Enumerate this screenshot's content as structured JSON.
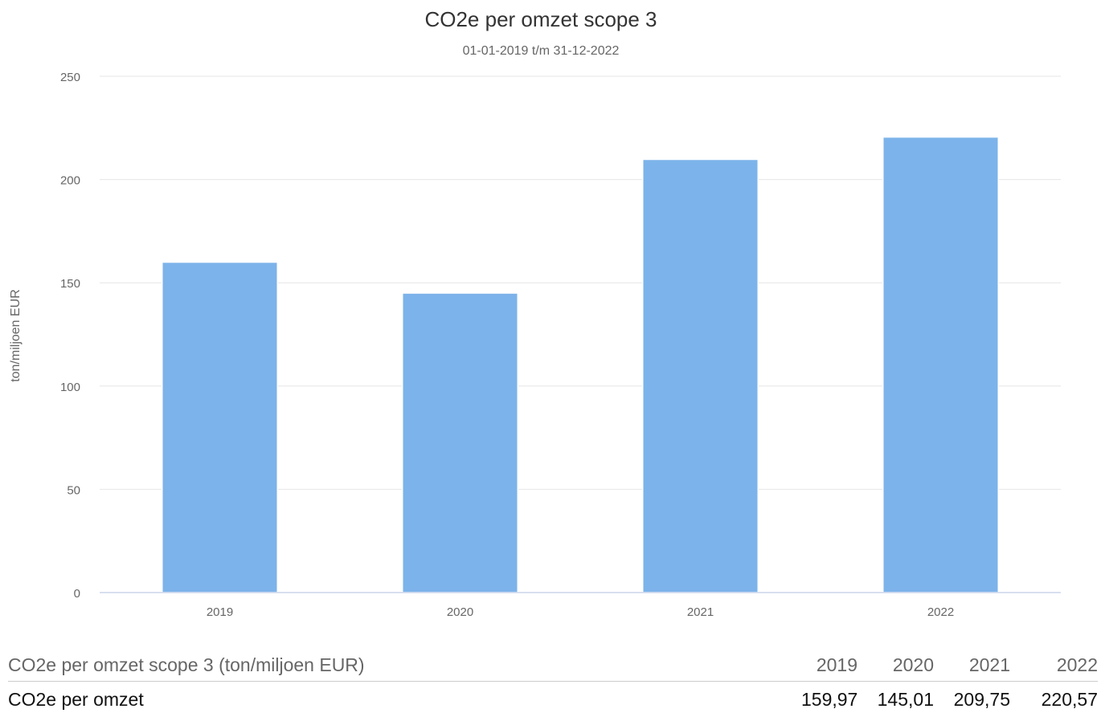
{
  "chart_data": {
    "type": "bar",
    "title": "CO2e per omzet scope 3",
    "subtitle": "01-01-2019 t/m 31-12-2022",
    "xlabel": "",
    "ylabel": "ton/miljoen EUR",
    "categories": [
      "2019",
      "2020",
      "2021",
      "2022"
    ],
    "values": [
      159.97,
      145.01,
      209.75,
      220.57
    ],
    "ylim": [
      0,
      250
    ],
    "yticks": [
      0,
      50,
      100,
      150,
      200,
      250
    ],
    "grid": true,
    "bar_color": "#7cb3ea"
  },
  "table": {
    "caption": "CO2e per omzet scope 3 (ton/miljoen EUR)",
    "columns": [
      "2019",
      "2020",
      "2021",
      "2022"
    ],
    "rows": [
      {
        "label": "CO2e per omzet",
        "values": [
          "159,97",
          "145,01",
          "209,75",
          "220,57"
        ]
      }
    ]
  }
}
